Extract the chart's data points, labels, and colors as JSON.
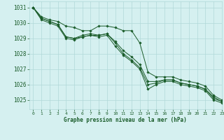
{
  "xlabel": "Graphe pression niveau de la mer (hPa)",
  "xlim": [
    -0.5,
    23
  ],
  "ylim": [
    1024.4,
    1031.4
  ],
  "yticks": [
    1025,
    1026,
    1027,
    1028,
    1029,
    1030,
    1031
  ],
  "xticks": [
    0,
    1,
    2,
    3,
    4,
    5,
    6,
    7,
    8,
    9,
    10,
    11,
    12,
    13,
    14,
    15,
    16,
    17,
    18,
    19,
    20,
    21,
    22,
    23
  ],
  "background_color": "#d5f0f0",
  "grid_color": "#b0d8d8",
  "line_color": "#1a5c2a",
  "series": [
    [
      1031.0,
      1030.4,
      1030.2,
      1030.1,
      1029.8,
      1029.7,
      1029.5,
      1029.5,
      1029.8,
      1029.8,
      1029.7,
      1029.5,
      1029.5,
      1028.7,
      1026.8,
      1026.5,
      1026.5,
      1026.5,
      1026.3,
      1026.2,
      1026.1,
      1025.9,
      1025.3,
      1025.0
    ],
    [
      1031.0,
      1030.3,
      1030.1,
      1029.9,
      1029.1,
      1029.0,
      1029.1,
      1029.2,
      1029.2,
      1029.3,
      1028.8,
      1028.2,
      1027.8,
      1027.3,
      1026.2,
      1026.2,
      1026.3,
      1026.3,
      1026.1,
      1026.0,
      1025.9,
      1025.7,
      1025.2,
      1024.9
    ],
    [
      1031.0,
      1030.2,
      1030.0,
      1029.8,
      1029.0,
      1028.9,
      1029.1,
      1029.2,
      1029.1,
      1029.2,
      1028.5,
      1027.9,
      1027.5,
      1027.0,
      1025.7,
      1026.0,
      1026.2,
      1026.2,
      1026.0,
      1025.9,
      1025.8,
      1025.6,
      1025.0,
      1024.8
    ],
    [
      1031.0,
      1030.3,
      1030.1,
      1029.9,
      1029.1,
      1029.0,
      1029.2,
      1029.3,
      1029.2,
      1029.3,
      1028.7,
      1028.0,
      1027.6,
      1027.1,
      1026.0,
      1026.1,
      1026.3,
      1026.3,
      1026.1,
      1026.0,
      1025.9,
      1025.7,
      1025.1,
      1024.9
    ]
  ]
}
